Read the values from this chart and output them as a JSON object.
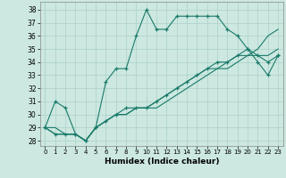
{
  "xlabel": "Humidex (Indice chaleur)",
  "background_color": "#cce8e0",
  "grid_color": "#aad0c8",
  "line_color": "#1a7a6a",
  "x_ticks": [
    0,
    1,
    2,
    3,
    4,
    5,
    6,
    7,
    8,
    9,
    10,
    11,
    12,
    13,
    14,
    15,
    16,
    17,
    18,
    19,
    20,
    21,
    22,
    23
  ],
  "y_ticks": [
    28,
    29,
    30,
    31,
    32,
    33,
    34,
    35,
    36,
    37,
    38
  ],
  "ylim": [
    27.6,
    38.6
  ],
  "xlim": [
    -0.5,
    23.5
  ],
  "series": [
    {
      "x": [
        0,
        1,
        2,
        3,
        4,
        5,
        6,
        7,
        8,
        9,
        10,
        11,
        12,
        13,
        14,
        15,
        16,
        17,
        18,
        19,
        20,
        21,
        22,
        23
      ],
      "y": [
        29.0,
        31.0,
        30.5,
        28.5,
        28.0,
        29.0,
        32.5,
        33.5,
        33.5,
        36.0,
        38.0,
        36.5,
        36.5,
        37.5,
        37.5,
        37.5,
        37.5,
        37.5,
        36.5,
        36.0,
        35.0,
        34.5,
        34.0,
        34.5
      ],
      "marker": "+"
    },
    {
      "x": [
        0,
        1,
        2,
        3,
        4,
        5,
        6,
        7,
        8,
        9,
        10,
        11,
        12,
        13,
        14,
        15,
        16,
        17,
        18,
        19,
        20,
        21,
        22,
        23
      ],
      "y": [
        29.0,
        28.5,
        28.5,
        28.5,
        28.0,
        29.0,
        29.5,
        30.0,
        30.5,
        30.5,
        30.5,
        31.0,
        31.5,
        32.0,
        32.5,
        33.0,
        33.5,
        34.0,
        34.0,
        34.5,
        35.0,
        34.0,
        33.0,
        34.5
      ],
      "marker": "+"
    },
    {
      "x": [
        0,
        1,
        2,
        3,
        4,
        5,
        6,
        7,
        8,
        9,
        10,
        11,
        12,
        13,
        14,
        15,
        16,
        17,
        18,
        19,
        20,
        21,
        22,
        23
      ],
      "y": [
        29.0,
        28.5,
        28.5,
        28.5,
        28.0,
        29.0,
        29.5,
        30.0,
        30.0,
        30.5,
        30.5,
        30.5,
        31.0,
        31.5,
        32.0,
        32.5,
        33.0,
        33.5,
        33.5,
        34.0,
        34.5,
        35.0,
        36.0,
        36.5
      ],
      "marker": null
    },
    {
      "x": [
        0,
        1,
        2,
        3,
        4,
        5,
        6,
        7,
        8,
        9,
        10,
        11,
        12,
        13,
        14,
        15,
        16,
        17,
        18,
        19,
        20,
        21,
        22,
        23
      ],
      "y": [
        29.0,
        29.0,
        28.5,
        28.5,
        28.0,
        29.0,
        29.5,
        30.0,
        30.0,
        30.5,
        30.5,
        31.0,
        31.5,
        32.0,
        32.5,
        33.0,
        33.5,
        33.5,
        34.0,
        34.5,
        34.5,
        34.5,
        34.5,
        35.0
      ],
      "marker": null
    }
  ]
}
